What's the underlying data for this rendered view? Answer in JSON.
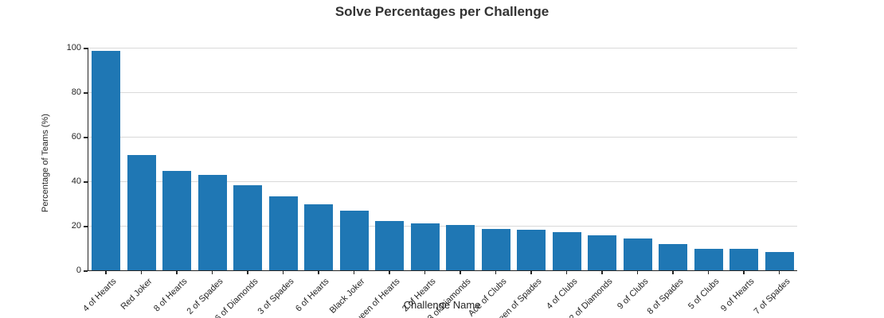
{
  "title": "Solve Percentages per Challenge",
  "y_axis": {
    "label": "Percentage of Teams (%)",
    "ticks": [
      0,
      20,
      40,
      60,
      80,
      100
    ]
  },
  "x_axis": {
    "label": "Challenge Name"
  },
  "colors": {
    "bar": "#1f77b4",
    "grid": "#d9d9d9",
    "axis": "#262626"
  },
  "chart_data": {
    "type": "bar",
    "title": "Solve Percentages per Challenge",
    "xlabel": "Challenge Name",
    "ylabel": "Percentage of Teams (%)",
    "ylim": [
      0,
      100
    ],
    "grid": "horizontal",
    "legend": "none",
    "categories": [
      "4 of Hearts",
      "Red Joker",
      "8 of Hearts",
      "2 of Spades",
      "6 of Diamonds",
      "3 of Spades",
      "6 of Hearts",
      "Black Joker",
      "Queen of Hearts",
      "2 of Hearts",
      "3 of Diamonds",
      "Ace of Clubs",
      "Queen of Spades",
      "4 of Clubs",
      "2 of Diamonds",
      "9 of Clubs",
      "8 of Spades",
      "5 of Clubs",
      "9 of Hearts",
      "7 of Spades"
    ],
    "values": [
      98.5,
      51.7,
      44.5,
      42.8,
      38.3,
      33.3,
      29.5,
      26.8,
      22.0,
      21.1,
      20.4,
      18.7,
      18.1,
      17.1,
      15.8,
      14.4,
      11.9,
      9.8,
      9.7,
      8.3
    ]
  }
}
